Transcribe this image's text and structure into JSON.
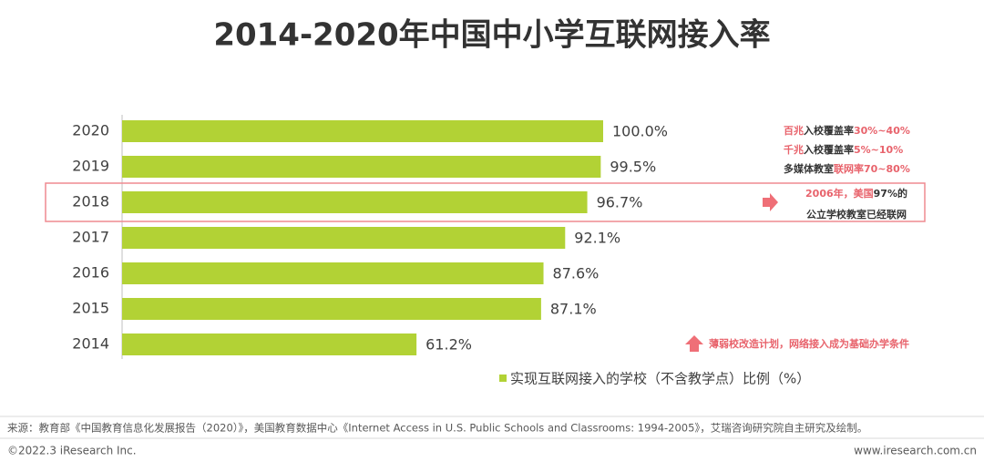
{
  "chart_data": {
    "type": "hbar",
    "title": "2014-2020年中国中小学互联网接入率",
    "categories": [
      "2020",
      "2019",
      "2018",
      "2017",
      "2016",
      "2015",
      "2014"
    ],
    "series": [
      {
        "name": "实现互联网接入的学校（不含教学点）比例（%）",
        "color": "#b2d235",
        "values": [
          100.0,
          99.5,
          96.7,
          92.1,
          87.6,
          87.1,
          61.2
        ],
        "value_labels": [
          "100.0%",
          "99.5%",
          "96.7%",
          "92.1%",
          "87.6%",
          "87.1%",
          "61.2%"
        ]
      }
    ],
    "xlim": [
      0,
      100
    ],
    "annotations": [
      {
        "parts": [
          {
            "text": "百兆",
            "color": "#e8636c"
          },
          {
            "text": "入校覆盖率",
            "color": "#333333"
          },
          {
            "text": "30%~40%",
            "color": "#e8636c"
          }
        ]
      },
      {
        "parts": [
          {
            "text": "千兆",
            "color": "#e8636c"
          },
          {
            "text": "入校覆盖率",
            "color": "#333333"
          },
          {
            "text": "5%~10%",
            "color": "#e8636c"
          }
        ]
      },
      {
        "parts": [
          {
            "text": "多媒体教室",
            "color": "#333333"
          },
          {
            "text": "联网率70~80%",
            "color": "#e8636c"
          }
        ]
      },
      {
        "parts": [
          {
            "text": "2006年，美国",
            "color": "#e8636c"
          },
          {
            "text": "97%的",
            "color": "#333333"
          }
        ]
      },
      {
        "parts": [
          {
            "text": "公立学校教室已经联网",
            "color": "#333333"
          }
        ]
      },
      {
        "parts": [
          {
            "text": "薄弱校改造计划，网络接入成为基础办学条件",
            "color": "#e8636c"
          }
        ]
      }
    ]
  },
  "footer": {
    "source": "来源：教育部《中国教育信息化发展报告（2020）》，美国教育数据中心《Internet Access in U.S. Public Schools and Classrooms: 1994-2005》，艾瑞咨询研究院自主研究及绘制。",
    "copyright": "©2022.3 iResearch Inc.",
    "website": "www.iresearch.com.cn"
  }
}
